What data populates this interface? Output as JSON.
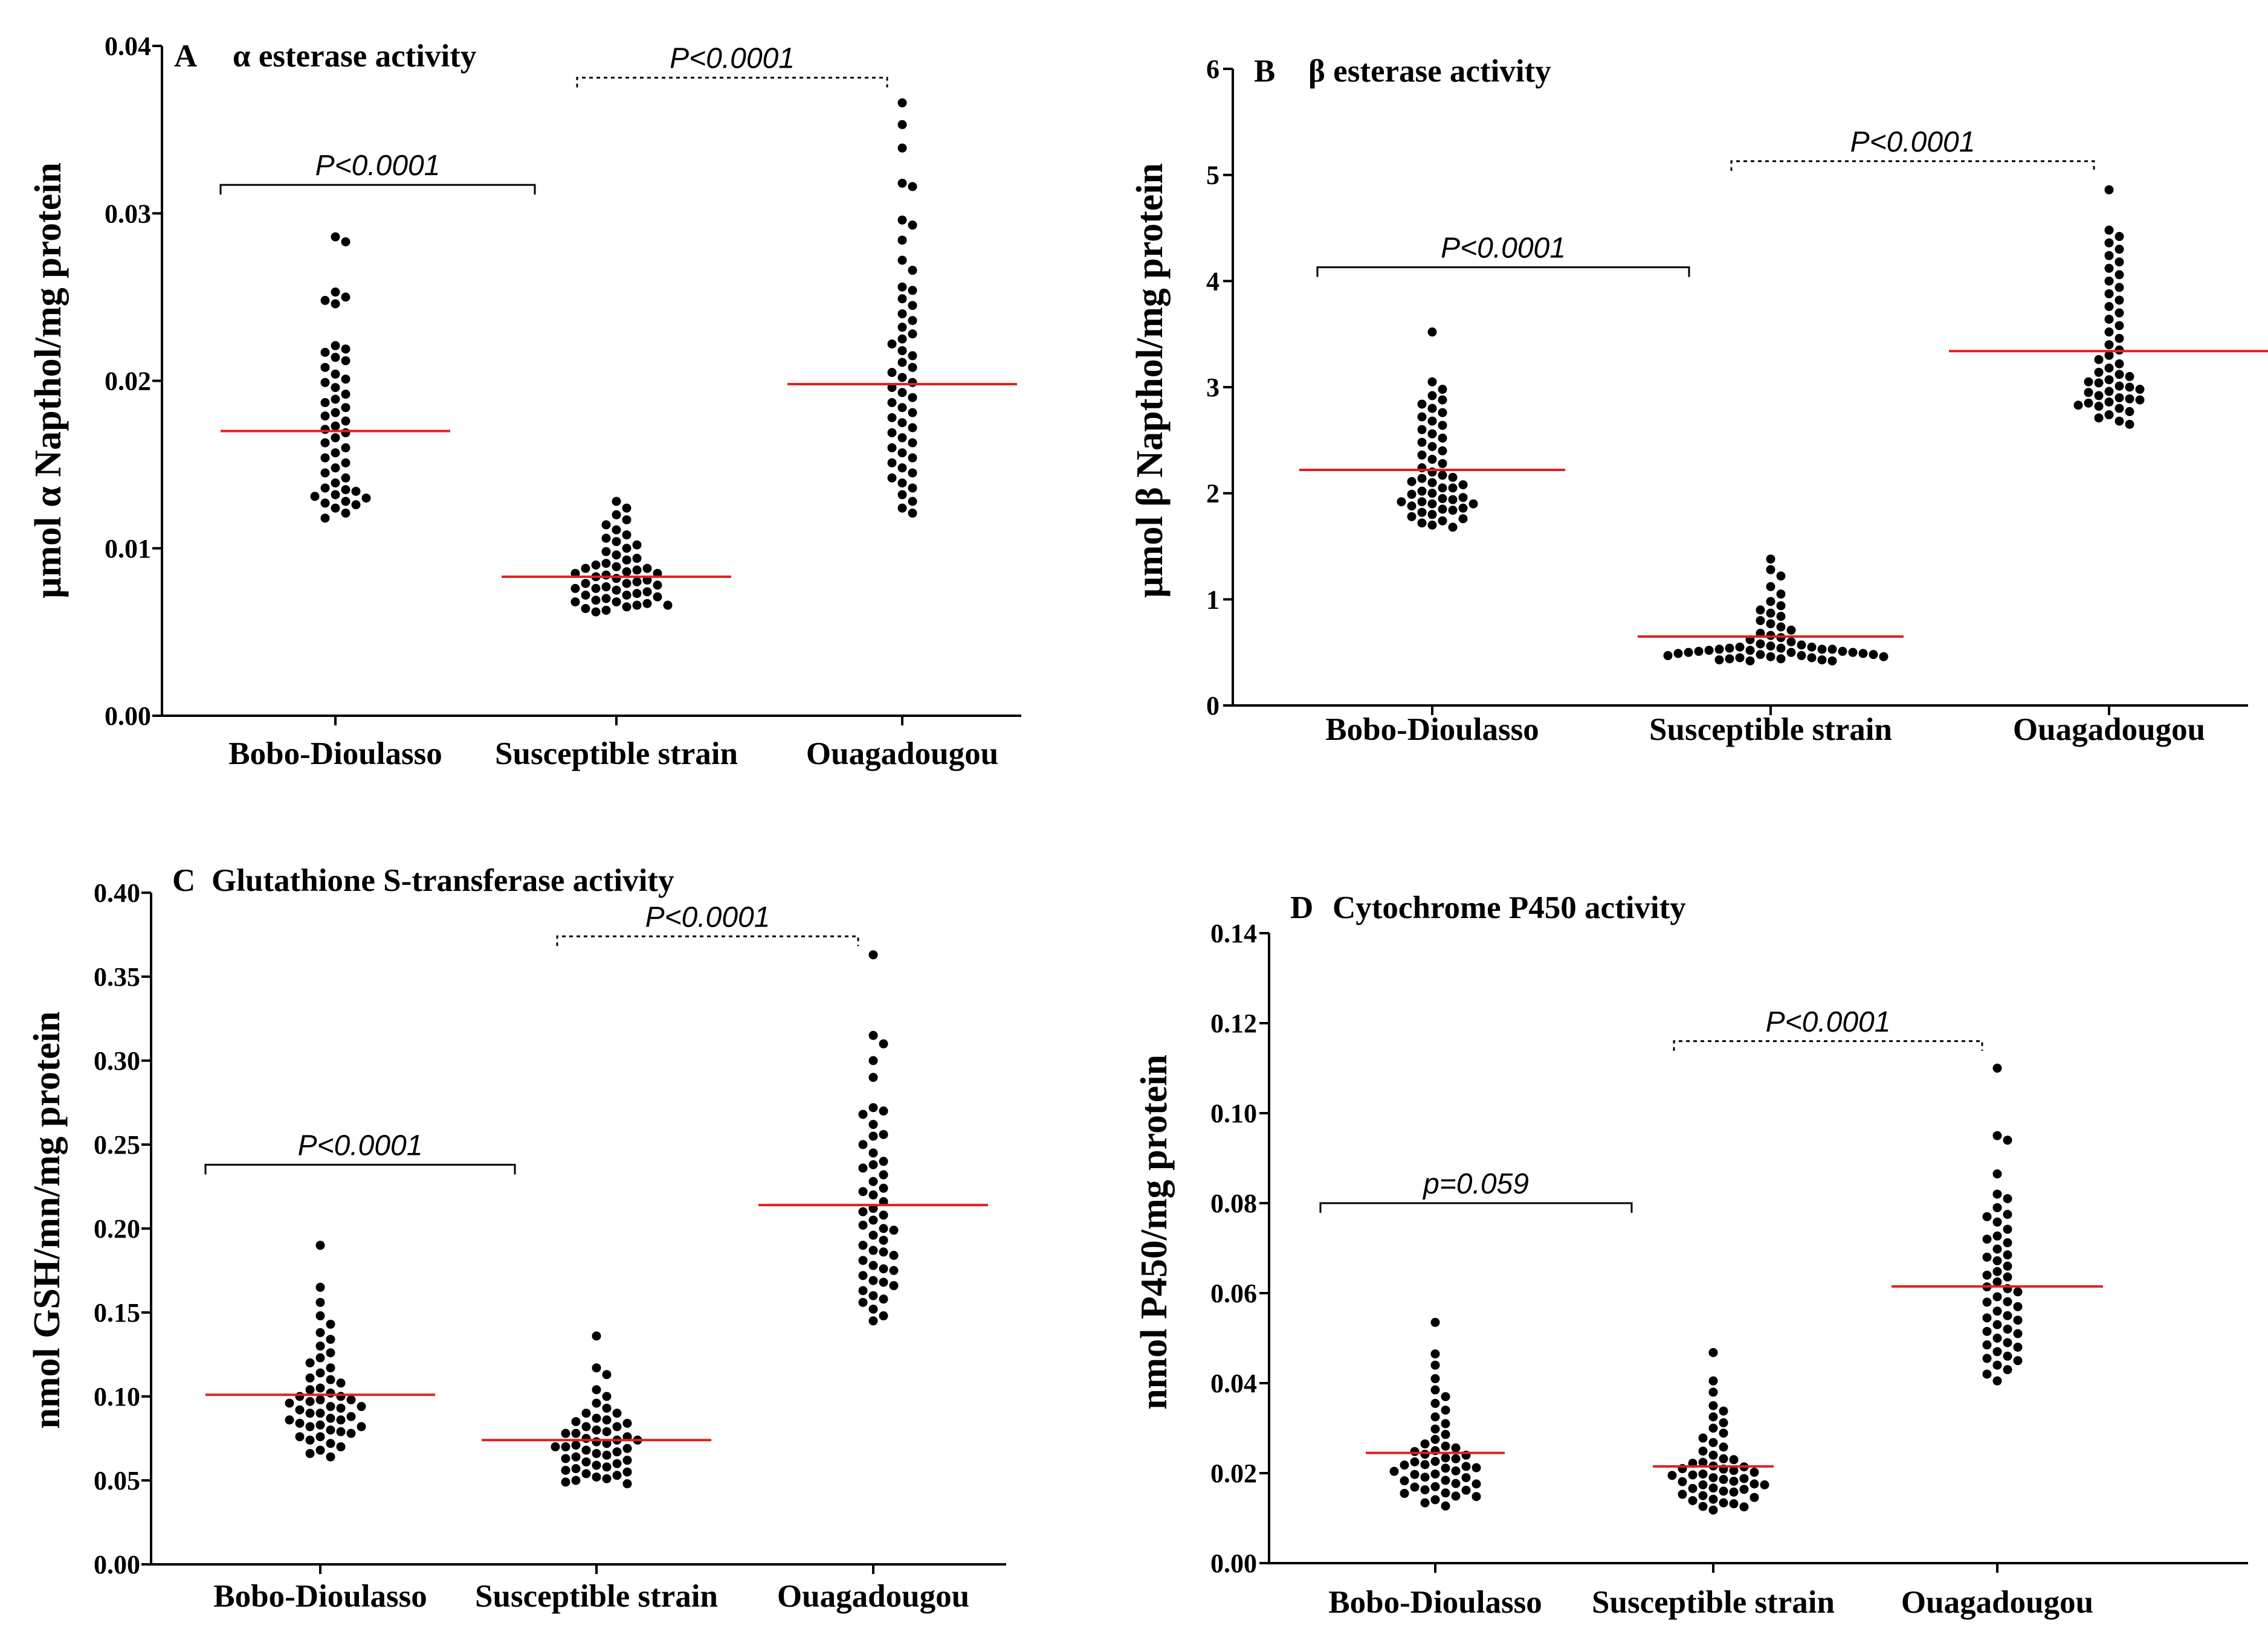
{
  "figure": {
    "chart_data": [
      {
        "type": "scatter",
        "panel": "A",
        "title": "α esterase activity",
        "ylabel": "µmol α Napthol/mg protein",
        "xlabel": "",
        "categories": [
          "Bobo-Dioulasso",
          "Susceptible strain",
          "Ouagadougou"
        ],
        "ylim": [
          0,
          0.04
        ],
        "yticks": [
          "0.00",
          "0.01",
          "0.02",
          "0.03",
          "0.04"
        ],
        "ytick_values": [
          0,
          0.01,
          0.02,
          0.03,
          0.04
        ],
        "means": [
          0.017,
          0.0083,
          0.0198
        ],
        "series": [
          {
            "name": "Bobo-Dioulasso",
            "values": [
              0.0286,
              0.0283,
              0.0253,
              0.025,
              0.0248,
              0.0246,
              0.0221,
              0.0219,
              0.0217,
              0.0214,
              0.0212,
              0.0208,
              0.0204,
              0.0201,
              0.0199,
              0.0196,
              0.0192,
              0.0189,
              0.0187,
              0.0184,
              0.0181,
              0.0179,
              0.0176,
              0.0173,
              0.0171,
              0.0169,
              0.0166,
              0.0163,
              0.016,
              0.0157,
              0.0154,
              0.0151,
              0.0148,
              0.0145,
              0.0142,
              0.0139,
              0.0136,
              0.0134,
              0.0132,
              0.013,
              0.0127,
              0.0124,
              0.0121,
              0.0118,
              0.0131,
              0.0135,
              0.0128,
              0.0126
            ]
          },
          {
            "name": "Susceptible strain",
            "values": [
              0.0128,
              0.0124,
              0.012,
              0.0117,
              0.0114,
              0.0111,
              0.0108,
              0.0106,
              0.0104,
              0.0102,
              0.01,
              0.0098,
              0.0096,
              0.0094,
              0.0093,
              0.0091,
              0.009,
              0.0089,
              0.0088,
              0.0087,
              0.0086,
              0.0085,
              0.0084,
              0.0083,
              0.0082,
              0.0081,
              0.008,
              0.0079,
              0.0078,
              0.0077,
              0.0076,
              0.0075,
              0.0074,
              0.0073,
              0.0072,
              0.0071,
              0.007,
              0.0069,
              0.0068,
              0.0067,
              0.0066,
              0.0065,
              0.0064,
              0.0063,
              0.0062,
              0.0088,
              0.0085,
              0.0079,
              0.0076,
              0.0072,
              0.0068,
              0.0066
            ]
          },
          {
            "name": "Ouagadougou",
            "values": [
              0.0366,
              0.0353,
              0.0339,
              0.0318,
              0.0316,
              0.0296,
              0.0293,
              0.0284,
              0.0272,
              0.0266,
              0.0256,
              0.0254,
              0.0249,
              0.0245,
              0.024,
              0.0236,
              0.0232,
              0.0228,
              0.0225,
              0.0222,
              0.0218,
              0.0215,
              0.0211,
              0.0208,
              0.0205,
              0.0202,
              0.0199,
              0.0196,
              0.0193,
              0.019,
              0.0187,
              0.0184,
              0.0181,
              0.0178,
              0.0175,
              0.0172,
              0.0169,
              0.0166,
              0.0163,
              0.016,
              0.0157,
              0.0154,
              0.0151,
              0.0148,
              0.0145,
              0.0142,
              0.0139,
              0.0136,
              0.0132,
              0.0128,
              0.0124,
              0.0121
            ]
          }
        ],
        "comparisons": [
          {
            "from": 0,
            "to": 1,
            "label": "P<0.0001",
            "style": "solid",
            "y": 0.0317
          },
          {
            "from": 1,
            "to": 2,
            "label": "P<0.0001",
            "style": "dashed",
            "y": 0.0381
          }
        ]
      },
      {
        "type": "scatter",
        "panel": "B",
        "title": "β esterase activity",
        "ylabel": "µmol β Napthol/mg protein",
        "xlabel": "",
        "categories": [
          "Bobo-Dioulasso",
          "Susceptible strain",
          "Ouagadougou"
        ],
        "ylim": [
          0,
          6
        ],
        "yticks": [
          "0",
          "1",
          "2",
          "3",
          "4",
          "5",
          "6"
        ],
        "ytick_values": [
          0,
          1,
          2,
          3,
          4,
          5,
          6
        ],
        "means": [
          2.22,
          0.65,
          3.34
        ],
        "series": [
          {
            "name": "Bobo-Dioulasso",
            "values": [
              3.52,
              3.05,
              2.98,
              2.92,
              2.88,
              2.84,
              2.8,
              2.76,
              2.72,
              2.68,
              2.64,
              2.6,
              2.56,
              2.52,
              2.48,
              2.44,
              2.4,
              2.36,
              2.32,
              2.28,
              2.24,
              2.2,
              2.17,
              2.14,
              2.11,
              2.08,
              2.05,
              2.02,
              1.99,
              1.96,
              1.94,
              1.92,
              1.9,
              1.88,
              1.86,
              1.84,
              1.82,
              1.8,
              1.78,
              1.76,
              1.74,
              1.72,
              1.7,
              1.68,
              2.1,
              2.0,
              1.95,
              1.9,
              2.05,
              1.85,
              1.92,
              2.15
            ]
          },
          {
            "name": "Susceptible strain",
            "values": [
              1.38,
              1.28,
              1.22,
              1.12,
              1.05,
              0.98,
              0.94,
              0.9,
              0.87,
              0.84,
              0.8,
              0.77,
              0.74,
              0.71,
              0.68,
              0.66,
              0.64,
              0.62,
              0.6,
              0.58,
              0.57,
              0.56,
              0.55,
              0.54,
              0.53,
              0.52,
              0.51,
              0.5,
              0.49,
              0.48,
              0.47,
              0.46,
              0.45,
              0.44,
              0.43,
              0.42,
              0.55,
              0.54,
              0.53,
              0.52,
              0.51,
              0.5,
              0.49,
              0.48,
              0.47,
              0.46,
              0.45,
              0.44,
              0.43,
              0.42,
              0.53,
              0.5
            ]
          },
          {
            "name": "Ouagadougou",
            "values": [
              4.86,
              4.48,
              4.42,
              4.36,
              4.3,
              4.24,
              4.18,
              4.12,
              4.06,
              4.0,
              3.94,
              3.88,
              3.82,
              3.76,
              3.7,
              3.64,
              3.58,
              3.52,
              3.46,
              3.4,
              3.35,
              3.3,
              3.26,
              3.22,
              3.18,
              3.14,
              3.1,
              3.07,
              3.04,
              3.01,
              2.98,
              2.95,
              2.92,
              2.89,
              2.86,
              2.83,
              2.8,
              2.77,
              2.74,
              2.71,
              2.68,
              2.65,
              3.0,
              2.96,
              2.9,
              2.85,
              3.05,
              3.12,
              2.88,
              2.82
            ]
          }
        ],
        "comparisons": [
          {
            "from": 0,
            "to": 1,
            "label": "P<0.0001",
            "style": "solid",
            "y": 4.13
          },
          {
            "from": 1,
            "to": 2,
            "label": "P<0.0001",
            "style": "dashed",
            "y": 5.13
          }
        ]
      },
      {
        "type": "scatter",
        "panel": "C",
        "title": "Glutathione S-transferase activity",
        "ylabel": "nmol GSH/mn/mg protein",
        "xlabel": "",
        "categories": [
          "Bobo-Dioulasso",
          "Susceptible strain",
          "Ouagadougou"
        ],
        "ylim": [
          0,
          0.4
        ],
        "yticks": [
          "0.00",
          "0.05",
          "0.10",
          "0.15",
          "0.20",
          "0.25",
          "0.30",
          "0.35",
          "0.40"
        ],
        "ytick_values": [
          0,
          0.05,
          0.1,
          0.15,
          0.2,
          0.25,
          0.3,
          0.35,
          0.4
        ],
        "means": [
          0.101,
          0.074,
          0.214
        ],
        "series": [
          {
            "name": "Bobo-Dioulasso",
            "values": [
              0.19,
              0.165,
              0.156,
              0.148,
              0.143,
              0.138,
              0.134,
              0.13,
              0.126,
              0.123,
              0.12,
              0.117,
              0.114,
              0.111,
              0.108,
              0.105,
              0.102,
              0.1,
              0.098,
              0.096,
              0.094,
              0.092,
              0.09,
              0.088,
              0.086,
              0.084,
              0.082,
              0.08,
              0.078,
              0.076,
              0.074,
              0.072,
              0.07,
              0.068,
              0.066,
              0.064,
              0.1,
              0.098,
              0.094,
              0.09,
              0.086,
              0.082,
              0.079,
              0.076,
              0.11,
              0.104,
              0.097,
              0.093,
              0.087,
              0.083
            ]
          },
          {
            "name": "Susceptible strain",
            "values": [
              0.136,
              0.117,
              0.113,
              0.104,
              0.1,
              0.096,
              0.093,
              0.09,
              0.087,
              0.084,
              0.082,
              0.08,
              0.078,
              0.076,
              0.074,
              0.072,
              0.07,
              0.068,
              0.066,
              0.064,
              0.062,
              0.06,
              0.058,
              0.056,
              0.054,
              0.052,
              0.05,
              0.048,
              0.086,
              0.082,
              0.079,
              0.075,
              0.071,
              0.067,
              0.063,
              0.059,
              0.055,
              0.051,
              0.09,
              0.085,
              0.078,
              0.073,
              0.069,
              0.065,
              0.061,
              0.057,
              0.053,
              0.049,
              0.074,
              0.07
            ]
          },
          {
            "name": "Ouagadougou",
            "values": [
              0.363,
              0.315,
              0.31,
              0.3,
              0.29,
              0.272,
              0.268,
              0.262,
              0.256,
              0.25,
              0.245,
              0.24,
              0.236,
              0.232,
              0.228,
              0.224,
              0.22,
              0.216,
              0.212,
              0.208,
              0.205,
              0.202,
              0.199,
              0.196,
              0.193,
              0.19,
              0.187,
              0.184,
              0.181,
              0.178,
              0.175,
              0.172,
              0.169,
              0.166,
              0.163,
              0.16,
              0.156,
              0.152,
              0.148,
              0.145,
              0.27,
              0.255,
              0.238,
              0.222,
              0.21,
              0.2,
              0.186,
              0.176,
              0.168,
              0.158
            ]
          }
        ],
        "comparisons": [
          {
            "from": 0,
            "to": 1,
            "label": "P<0.0001",
            "style": "solid",
            "y": 0.238
          },
          {
            "from": 1,
            "to": 2,
            "label": "P<0.0001",
            "style": "dashed",
            "y": 0.374
          }
        ]
      },
      {
        "type": "scatter",
        "panel": "D",
        "title": "Cytochrome P450 activity",
        "ylabel": "nmol P450/mg protein",
        "xlabel": "",
        "categories": [
          "Bobo-Dioulasso",
          "Susceptible strain",
          "Ouagadougou"
        ],
        "ylim": [
          0,
          0.14
        ],
        "yticks": [
          "0.00",
          "0.02",
          "0.04",
          "0.06",
          "0.08",
          "0.10",
          "0.12",
          "0.14"
        ],
        "ytick_values": [
          0,
          0.02,
          0.04,
          0.06,
          0.08,
          0.1,
          0.12,
          0.14
        ],
        "means": [
          0.0245,
          0.0215,
          0.0615
        ],
        "series": [
          {
            "name": "Bobo-Dioulasso",
            "values": [
              0.0535,
              0.0465,
              0.044,
              0.041,
              0.0385,
              0.037,
              0.0355,
              0.034,
              0.0325,
              0.031,
              0.0298,
              0.0286,
              0.0275,
              0.0265,
              0.0256,
              0.0248,
              0.024,
              0.0232,
              0.0225,
              0.0218,
              0.0211,
              0.0204,
              0.0197,
              0.019,
              0.0183,
              0.0176,
              0.0169,
              0.0162,
              0.0155,
              0.0148,
              0.0141,
              0.0134,
              0.0127,
              0.025,
              0.0242,
              0.0234,
              0.0226,
              0.0219,
              0.0212,
              0.0205,
              0.0198,
              0.0191,
              0.0184,
              0.0177,
              0.017,
              0.0163,
              0.0156,
              0.0149,
              0.026,
              0.0215
            ]
          },
          {
            "name": "Susceptible strain",
            "values": [
              0.0468,
              0.0405,
              0.038,
              0.035,
              0.0338,
              0.0325,
              0.0312,
              0.03,
              0.0289,
              0.0278,
              0.0268,
              0.0258,
              0.0249,
              0.024,
              0.0232,
              0.0224,
              0.0216,
              0.0209,
              0.0202,
              0.0195,
              0.0188,
              0.0181,
              0.0174,
              0.0167,
              0.016,
              0.0153,
              0.0146,
              0.0139,
              0.0132,
              0.0125,
              0.0118,
              0.023,
              0.0222,
              0.0214,
              0.0206,
              0.0198,
              0.019,
              0.0182,
              0.0174,
              0.0166,
              0.0158,
              0.015,
              0.0142,
              0.0134,
              0.0126,
              0.021,
              0.0196,
              0.0186,
              0.0176,
              0.0164
            ]
          },
          {
            "name": "Ouagadougou",
            "values": [
              0.11,
              0.095,
              0.094,
              0.0865,
              0.082,
              0.081,
              0.079,
              0.0775,
              0.0758,
              0.0742,
              0.0727,
              0.0712,
              0.0698,
              0.0685,
              0.0672,
              0.066,
              0.0648,
              0.0636,
              0.0625,
              0.0614,
              0.0603,
              0.0592,
              0.0581,
              0.057,
              0.056,
              0.055,
              0.054,
              0.053,
              0.052,
              0.051,
              0.05,
              0.049,
              0.048,
              0.047,
              0.046,
              0.045,
              0.044,
              0.043,
              0.042,
              0.0405,
              0.077,
              0.072,
              0.068,
              0.064,
              0.061,
              0.058,
              0.0545,
              0.0515,
              0.0485,
              0.0455
            ]
          }
        ],
        "comparisons": [
          {
            "from": 0,
            "to": 1,
            "label": "p=0.059",
            "style": "solid",
            "y": 0.08
          },
          {
            "from": 1,
            "to": 2,
            "label": "P<0.0001",
            "style": "dashed",
            "y": 0.116
          }
        ]
      }
    ]
  }
}
